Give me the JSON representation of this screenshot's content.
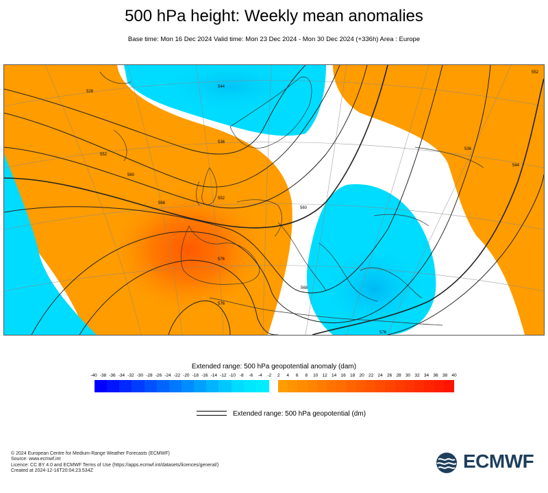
{
  "title": "500 hPa height: Weekly mean anomalies",
  "subtitle": "Base time: Mon 16 Dec 2024 Valid time: Mon 23 Dec 2024 - Mon 30 Dec 2024 (+336h) Area : Europe",
  "contour_labels": [
    "528",
    "552",
    "560",
    "568",
    "576",
    "544",
    "536",
    "552",
    "560",
    "568",
    "576",
    "536",
    "544",
    "552",
    "576"
  ],
  "colorbar": {
    "title": "Extended range: 500 hPa geopotential anomaly (dam)",
    "ticks": [
      "-40",
      "-38",
      "-36",
      "-34",
      "-32",
      "-30",
      "-28",
      "-26",
      "-24",
      "-22",
      "-20",
      "-18",
      "-16",
      "-14",
      "-12",
      "-10",
      "-8",
      "-6",
      "-4",
      "-2",
      "2",
      "4",
      "6",
      "8",
      "10",
      "12",
      "14",
      "16",
      "18",
      "20",
      "22",
      "24",
      "26",
      "28",
      "30",
      "32",
      "34",
      "36",
      "38",
      "40"
    ],
    "negative_colors": [
      "#0000ff",
      "#0014ff",
      "#0028ff",
      "#003cff",
      "#0050ff",
      "#0064ff",
      "#0078ff",
      "#008cff",
      "#00a0ff",
      "#00b4ff",
      "#00c8ff",
      "#00dcff",
      "#00e6ff",
      "#00ecff"
    ],
    "positive_colors": [
      "#ff9c00",
      "#ff9400",
      "#ff8c00",
      "#ff8400",
      "#ff7c00",
      "#ff7400",
      "#ff6c00",
      "#ff6400",
      "#ff5c00",
      "#ff5400",
      "#ff4c00",
      "#ff4400",
      "#ff3c00",
      "#ff3400",
      "#ff2c00",
      "#ff2400",
      "#ff1c00",
      "#ff1400"
    ]
  },
  "legend": {
    "label": "Extended range: 500 hPa geopotential (dm)"
  },
  "footer": {
    "copyright": "© 2024 European Centre for Medium-Range Weather Forecasts (ECMWF)",
    "source": "Source: www.ecmwf.int",
    "licence": "Licence: CC BY 4.0 and ECMWF Terms of Use (https://apps.ecmwf.int/datasets/licences/general/)",
    "created": "Created at 2024-12-16T20:04:23.534Z"
  },
  "logo": {
    "text": "ECMWF",
    "color": "#1d3e5c"
  }
}
